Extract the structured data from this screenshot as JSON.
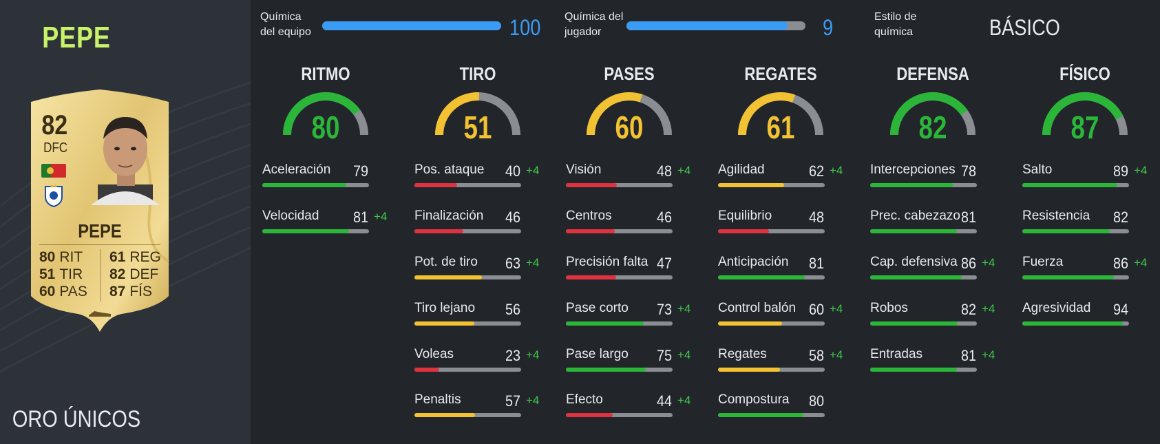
{
  "player": {
    "name_top": "PEPE",
    "version": "ORO ÚNICOS",
    "card": {
      "rating": "82",
      "position": "DFC",
      "name": "PEPE",
      "stats": [
        {
          "value": "80",
          "label": "RIT"
        },
        {
          "value": "51",
          "label": "TIR"
        },
        {
          "value": "60",
          "label": "PAS"
        },
        {
          "value": "61",
          "label": "REG"
        },
        {
          "value": "82",
          "label": "DEF"
        },
        {
          "value": "87",
          "label": "FÍS"
        }
      ]
    }
  },
  "chemistry": {
    "team_label": "Química del equipo",
    "team_value": "100",
    "team_fraction": 1.0,
    "player_label": "Química del jugador",
    "player_value": "9",
    "player_fraction": 0.9,
    "style_label": "Estilo de química",
    "style_value": "BÁSICO"
  },
  "colors": {
    "green": "#2bb63a",
    "yellow": "#f2c232",
    "red": "#e0323e",
    "blue": "#3b9cf5",
    "boost": "#3ec94a",
    "track": "#8a8e93"
  },
  "categories": [
    {
      "title": "RITMO",
      "value": 80,
      "color": "green",
      "attributes": [
        {
          "name": "Aceleración",
          "value": 79,
          "boost": "",
          "color": "green"
        },
        {
          "name": "Velocidad",
          "value": 81,
          "boost": "+4",
          "color": "green"
        }
      ]
    },
    {
      "title": "TIRO",
      "value": 51,
      "color": "yellow",
      "attributes": [
        {
          "name": "Pos. ataque",
          "value": 40,
          "boost": "+4",
          "color": "red"
        },
        {
          "name": "Finalización",
          "value": 46,
          "boost": "",
          "color": "red"
        },
        {
          "name": "Pot. de tiro",
          "value": 63,
          "boost": "+4",
          "color": "yellow"
        },
        {
          "name": "Tiro lejano",
          "value": 56,
          "boost": "",
          "color": "yellow"
        },
        {
          "name": "Voleas",
          "value": 23,
          "boost": "+4",
          "color": "red"
        },
        {
          "name": "Penaltis",
          "value": 57,
          "boost": "+4",
          "color": "yellow"
        }
      ]
    },
    {
      "title": "PASES",
      "value": 60,
      "color": "yellow",
      "attributes": [
        {
          "name": "Visión",
          "value": 48,
          "boost": "+4",
          "color": "red"
        },
        {
          "name": "Centros",
          "value": 46,
          "boost": "",
          "color": "red"
        },
        {
          "name": "Precisión falta",
          "value": 47,
          "boost": "",
          "color": "red"
        },
        {
          "name": "Pase corto",
          "value": 73,
          "boost": "+4",
          "color": "green"
        },
        {
          "name": "Pase largo",
          "value": 75,
          "boost": "+4",
          "color": "green"
        },
        {
          "name": "Efecto",
          "value": 44,
          "boost": "+4",
          "color": "red"
        }
      ]
    },
    {
      "title": "REGATES",
      "value": 61,
      "color": "yellow",
      "attributes": [
        {
          "name": "Agilidad",
          "value": 62,
          "boost": "+4",
          "color": "yellow"
        },
        {
          "name": "Equilibrio",
          "value": 48,
          "boost": "",
          "color": "red"
        },
        {
          "name": "Anticipación",
          "value": 81,
          "boost": "",
          "color": "green"
        },
        {
          "name": "Control balón",
          "value": 60,
          "boost": "+4",
          "color": "yellow"
        },
        {
          "name": "Regates",
          "value": 58,
          "boost": "+4",
          "color": "yellow"
        },
        {
          "name": "Compostura",
          "value": 80,
          "boost": "",
          "color": "green"
        }
      ]
    },
    {
      "title": "DEFENSA",
      "value": 82,
      "color": "green",
      "attributes": [
        {
          "name": "Intercepciones",
          "value": 78,
          "boost": "",
          "color": "green"
        },
        {
          "name": "Prec. cabezazo",
          "value": 81,
          "boost": "",
          "color": "green"
        },
        {
          "name": "Cap. defensiva",
          "value": 86,
          "boost": "+4",
          "color": "green"
        },
        {
          "name": "Robos",
          "value": 82,
          "boost": "+4",
          "color": "green"
        },
        {
          "name": "Entradas",
          "value": 81,
          "boost": "+4",
          "color": "green"
        }
      ]
    },
    {
      "title": "FÍSICO",
      "value": 87,
      "color": "green",
      "attributes": [
        {
          "name": "Salto",
          "value": 89,
          "boost": "+4",
          "color": "green"
        },
        {
          "name": "Resistencia",
          "value": 82,
          "boost": "",
          "color": "green"
        },
        {
          "name": "Fuerza",
          "value": 86,
          "boost": "+4",
          "color": "green"
        },
        {
          "name": "Agresividad",
          "value": 94,
          "boost": "",
          "color": "green"
        }
      ]
    }
  ]
}
